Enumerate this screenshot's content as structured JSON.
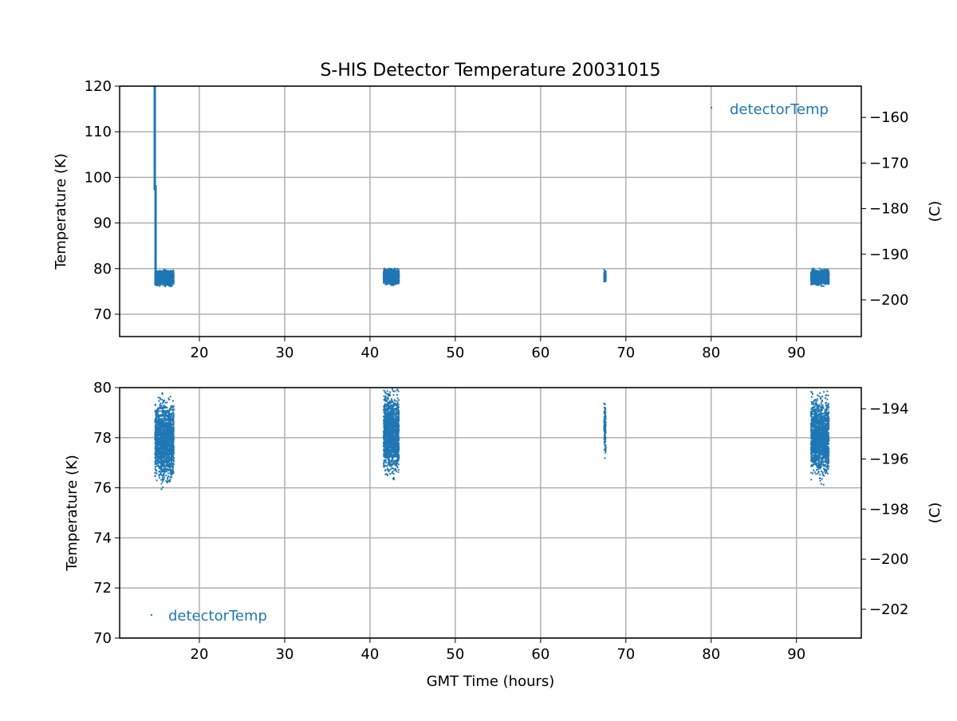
{
  "chart_data": [
    {
      "type": "scatter",
      "title": "S-HIS Detector Temperature 20031015",
      "xlabel": "",
      "ylabel": "Temperature (K)",
      "y2label": "(C)",
      "xlim": [
        10.65,
        97.6
      ],
      "ylim": [
        65.1,
        120
      ],
      "xticks": [
        20,
        30,
        40,
        50,
        60,
        70,
        80,
        90
      ],
      "yticks": [
        70,
        80,
        90,
        100,
        110,
        120
      ],
      "y2ticks": [
        -160,
        -170,
        -180,
        -190,
        -200
      ],
      "grid": true,
      "legend": {
        "label": "detectorTemp",
        "placement": "top-right"
      },
      "color": "#1f77b4",
      "series": [
        {
          "name": "detectorTemp",
          "spike": {
            "x": 14.77,
            "from": 120,
            "to": 97.2,
            "second_from": 98.3
          },
          "clusters": [
            {
              "x": [
                14.8,
                17.0
              ],
              "y": [
                75.8,
                80.0
              ]
            },
            {
              "x": [
                41.6,
                43.4
              ],
              "y": [
                76.1,
                80.3
              ]
            },
            {
              "x": [
                67.45,
                67.65
              ],
              "y": [
                76.9,
                79.9
              ]
            },
            {
              "x": [
                91.7,
                93.8
              ],
              "y": [
                76.0,
                80.1
              ]
            }
          ]
        }
      ]
    },
    {
      "type": "scatter",
      "title": "",
      "xlabel": "GMT Time (hours)",
      "ylabel": "Temperature (K)",
      "y2label": "(C)",
      "xlim": [
        10.65,
        97.6
      ],
      "ylim": [
        70,
        80
      ],
      "xticks": [
        20,
        30,
        40,
        50,
        60,
        70,
        80,
        90
      ],
      "yticks": [
        70,
        72,
        74,
        76,
        78,
        80
      ],
      "y2ticks": [
        -194,
        -196,
        -198,
        -200,
        -202
      ],
      "grid": true,
      "legend": {
        "label": "detectorTemp",
        "placement": "bottom-left"
      },
      "color": "#1f77b4"
    }
  ]
}
